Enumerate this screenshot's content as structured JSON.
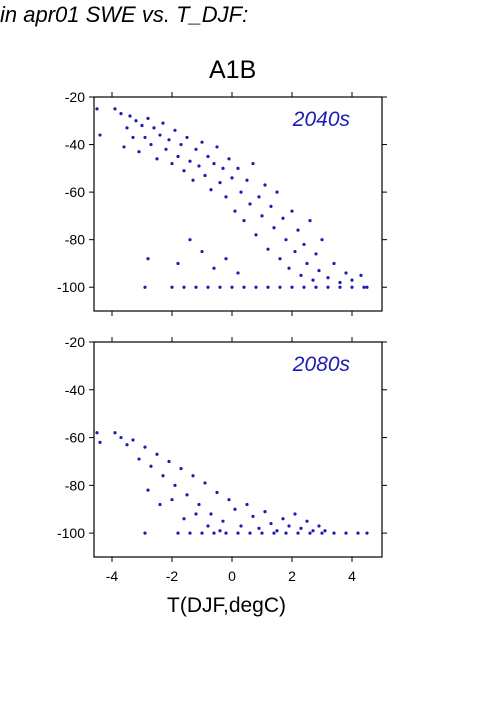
{
  "title": "in apr01 SWE vs. T_DJF:",
  "scenario": "A1B",
  "xlabel": "T(DJF,degC)",
  "colors": {
    "points": "#1c1cb4",
    "frame": "#000000"
  },
  "chart_data": [
    {
      "type": "scatter",
      "panel_label": "2040s",
      "xlim": [
        -4.6,
        5.0
      ],
      "ylim": [
        -110,
        -20
      ],
      "xticks": [
        -4,
        -2,
        0,
        2,
        4
      ],
      "yticks": [
        -20,
        -40,
        -60,
        -80,
        -100
      ],
      "ytick_labels": [
        "-20",
        "-40",
        "-60",
        "-80",
        "-100"
      ],
      "xtick_labels": [],
      "points": [
        [
          -4.5,
          -25
        ],
        [
          -4.4,
          -36
        ],
        [
          -3.9,
          -25
        ],
        [
          -3.7,
          -27
        ],
        [
          -3.6,
          -41
        ],
        [
          -3.5,
          -33
        ],
        [
          -3.4,
          -28
        ],
        [
          -3.3,
          -37
        ],
        [
          -3.2,
          -30
        ],
        [
          -3.1,
          -43
        ],
        [
          -3.0,
          -32
        ],
        [
          -2.9,
          -37
        ],
        [
          -2.8,
          -29
        ],
        [
          -2.7,
          -40
        ],
        [
          -2.6,
          -33
        ],
        [
          -2.5,
          -46
        ],
        [
          -2.4,
          -36
        ],
        [
          -2.3,
          -31
        ],
        [
          -2.2,
          -42
        ],
        [
          -2.1,
          -38
        ],
        [
          -2.0,
          -48
        ],
        [
          -1.9,
          -34
        ],
        [
          -1.8,
          -45
        ],
        [
          -1.7,
          -40
        ],
        [
          -1.6,
          -51
        ],
        [
          -1.5,
          -37
        ],
        [
          -1.4,
          -47
        ],
        [
          -1.3,
          -55
        ],
        [
          -1.2,
          -42
        ],
        [
          -1.1,
          -49
        ],
        [
          -1.0,
          -39
        ],
        [
          -0.9,
          -53
        ],
        [
          -0.8,
          -45
        ],
        [
          -0.7,
          -59
        ],
        [
          -0.6,
          -48
        ],
        [
          -0.5,
          -41
        ],
        [
          -0.4,
          -56
        ],
        [
          -0.3,
          -50
        ],
        [
          -0.2,
          -62
        ],
        [
          -0.1,
          -46
        ],
        [
          0.0,
          -54
        ],
        [
          0.1,
          -68
        ],
        [
          0.2,
          -50
        ],
        [
          0.3,
          -60
        ],
        [
          0.4,
          -72
        ],
        [
          0.5,
          -55
        ],
        [
          0.6,
          -65
        ],
        [
          0.7,
          -48
        ],
        [
          0.8,
          -78
        ],
        [
          0.9,
          -62
        ],
        [
          1.0,
          -70
        ],
        [
          1.1,
          -57
        ],
        [
          1.2,
          -84
        ],
        [
          1.3,
          -66
        ],
        [
          1.4,
          -75
        ],
        [
          1.5,
          -60
        ],
        [
          1.6,
          -88
        ],
        [
          1.7,
          -71
        ],
        [
          1.8,
          -80
        ],
        [
          1.9,
          -92
        ],
        [
          2.0,
          -68
        ],
        [
          2.1,
          -85
        ],
        [
          2.2,
          -76
        ],
        [
          2.3,
          -95
        ],
        [
          2.4,
          -82
        ],
        [
          2.5,
          -90
        ],
        [
          2.6,
          -72
        ],
        [
          2.7,
          -97
        ],
        [
          2.8,
          -86
        ],
        [
          2.9,
          -93
        ],
        [
          3.0,
          -80
        ],
        [
          3.2,
          -96
        ],
        [
          3.4,
          -90
        ],
        [
          3.6,
          -98
        ],
        [
          3.8,
          -94
        ],
        [
          4.0,
          -97
        ],
        [
          4.3,
          -95
        ],
        [
          4.5,
          -100
        ],
        [
          -2.8,
          -88
        ],
        [
          -2.9,
          -100
        ],
        [
          -1.8,
          -90
        ],
        [
          -1.4,
          -80
        ],
        [
          -1.0,
          -85
        ],
        [
          -0.6,
          -92
        ],
        [
          -0.2,
          -88
        ],
        [
          0.2,
          -94
        ],
        [
          -2.0,
          -100
        ],
        [
          -1.6,
          -100
        ],
        [
          -1.2,
          -100
        ],
        [
          -0.8,
          -100
        ],
        [
          -0.4,
          -100
        ],
        [
          0.0,
          -100
        ],
        [
          0.4,
          -100
        ],
        [
          0.8,
          -100
        ],
        [
          1.2,
          -100
        ],
        [
          1.6,
          -100
        ],
        [
          2.0,
          -100
        ],
        [
          2.4,
          -100
        ],
        [
          2.8,
          -100
        ],
        [
          3.2,
          -100
        ],
        [
          3.6,
          -100
        ],
        [
          4.0,
          -100
        ],
        [
          4.4,
          -100
        ]
      ]
    },
    {
      "type": "scatter",
      "panel_label": "2080s",
      "xlim": [
        -4.6,
        5.0
      ],
      "ylim": [
        -110,
        -20
      ],
      "xticks": [
        -4,
        -2,
        0,
        2,
        4
      ],
      "yticks": [
        -20,
        -40,
        -60,
        -80,
        -100
      ],
      "ytick_labels": [
        "-20",
        "-40",
        "-60",
        "-80",
        "-100"
      ],
      "xtick_labels": [
        "-4",
        "-2",
        "0",
        "2",
        "4"
      ],
      "points": [
        [
          -4.5,
          -58
        ],
        [
          -4.4,
          -62
        ],
        [
          -3.9,
          -58
        ],
        [
          -3.7,
          -60
        ],
        [
          -3.5,
          -63
        ],
        [
          -3.3,
          -61
        ],
        [
          -3.1,
          -69
        ],
        [
          -2.9,
          -64
        ],
        [
          -2.7,
          -72
        ],
        [
          -2.5,
          -67
        ],
        [
          -2.3,
          -76
        ],
        [
          -2.1,
          -70
        ],
        [
          -1.9,
          -80
        ],
        [
          -1.7,
          -73
        ],
        [
          -1.5,
          -84
        ],
        [
          -1.3,
          -76
        ],
        [
          -1.1,
          -88
        ],
        [
          -0.9,
          -79
        ],
        [
          -0.7,
          -92
        ],
        [
          -0.5,
          -83
        ],
        [
          -0.3,
          -95
        ],
        [
          -0.1,
          -86
        ],
        [
          0.1,
          -90
        ],
        [
          0.3,
          -97
        ],
        [
          0.5,
          -88
        ],
        [
          0.7,
          -93
        ],
        [
          0.9,
          -98
        ],
        [
          1.1,
          -91
        ],
        [
          1.3,
          -96
        ],
        [
          1.5,
          -99
        ],
        [
          1.7,
          -94
        ],
        [
          1.9,
          -97
        ],
        [
          2.1,
          -92
        ],
        [
          2.3,
          -98
        ],
        [
          2.5,
          -95
        ],
        [
          2.7,
          -99
        ],
        [
          2.9,
          -97
        ],
        [
          3.1,
          -99
        ],
        [
          -2.8,
          -82
        ],
        [
          -2.4,
          -88
        ],
        [
          -2.0,
          -86
        ],
        [
          -1.6,
          -94
        ],
        [
          -1.2,
          -92
        ],
        [
          -0.8,
          -97
        ],
        [
          -0.4,
          -99
        ],
        [
          -2.9,
          -100
        ],
        [
          -1.8,
          -100
        ],
        [
          -1.4,
          -100
        ],
        [
          -1.0,
          -100
        ],
        [
          -0.6,
          -100
        ],
        [
          -0.2,
          -100
        ],
        [
          0.2,
          -100
        ],
        [
          0.6,
          -100
        ],
        [
          1.0,
          -100
        ],
        [
          1.4,
          -100
        ],
        [
          1.8,
          -100
        ],
        [
          2.2,
          -100
        ],
        [
          2.6,
          -100
        ],
        [
          3.0,
          -100
        ],
        [
          3.4,
          -100
        ],
        [
          3.8,
          -100
        ],
        [
          4.2,
          -100
        ],
        [
          4.5,
          -100
        ]
      ]
    }
  ]
}
